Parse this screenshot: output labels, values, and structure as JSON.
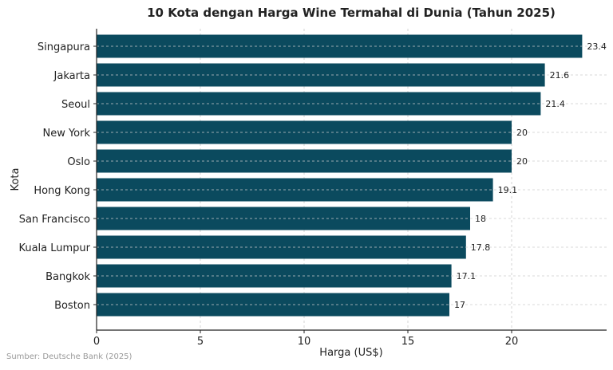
{
  "chart_data": {
    "type": "bar",
    "orientation": "horizontal",
    "title": "10 Kota dengan Harga Wine Termahal di Dunia (Tahun 2025)",
    "xlabel": "Harga (US$)",
    "ylabel": "Kota",
    "categories": [
      "Singapura",
      "Jakarta",
      "Seoul",
      "New York",
      "Oslo",
      "Hong Kong",
      "San Francisco",
      "Kuala Lumpur",
      "Bangkok",
      "Boston"
    ],
    "values": [
      23.4,
      21.6,
      21.4,
      20,
      20,
      19.1,
      18,
      17.8,
      17.1,
      17
    ],
    "data_labels": [
      "23.4",
      "21.6",
      "21.4",
      "20",
      "20",
      "19.1",
      "18",
      "17.8",
      "17.1",
      "17"
    ],
    "xticks": [
      "0",
      "5",
      "10",
      "15",
      "20"
    ],
    "xlim": [
      0,
      24.6
    ],
    "grid": true,
    "bar_color": "#0b4a5e",
    "source": "Sumber: Deutsche Bank (2025)"
  }
}
